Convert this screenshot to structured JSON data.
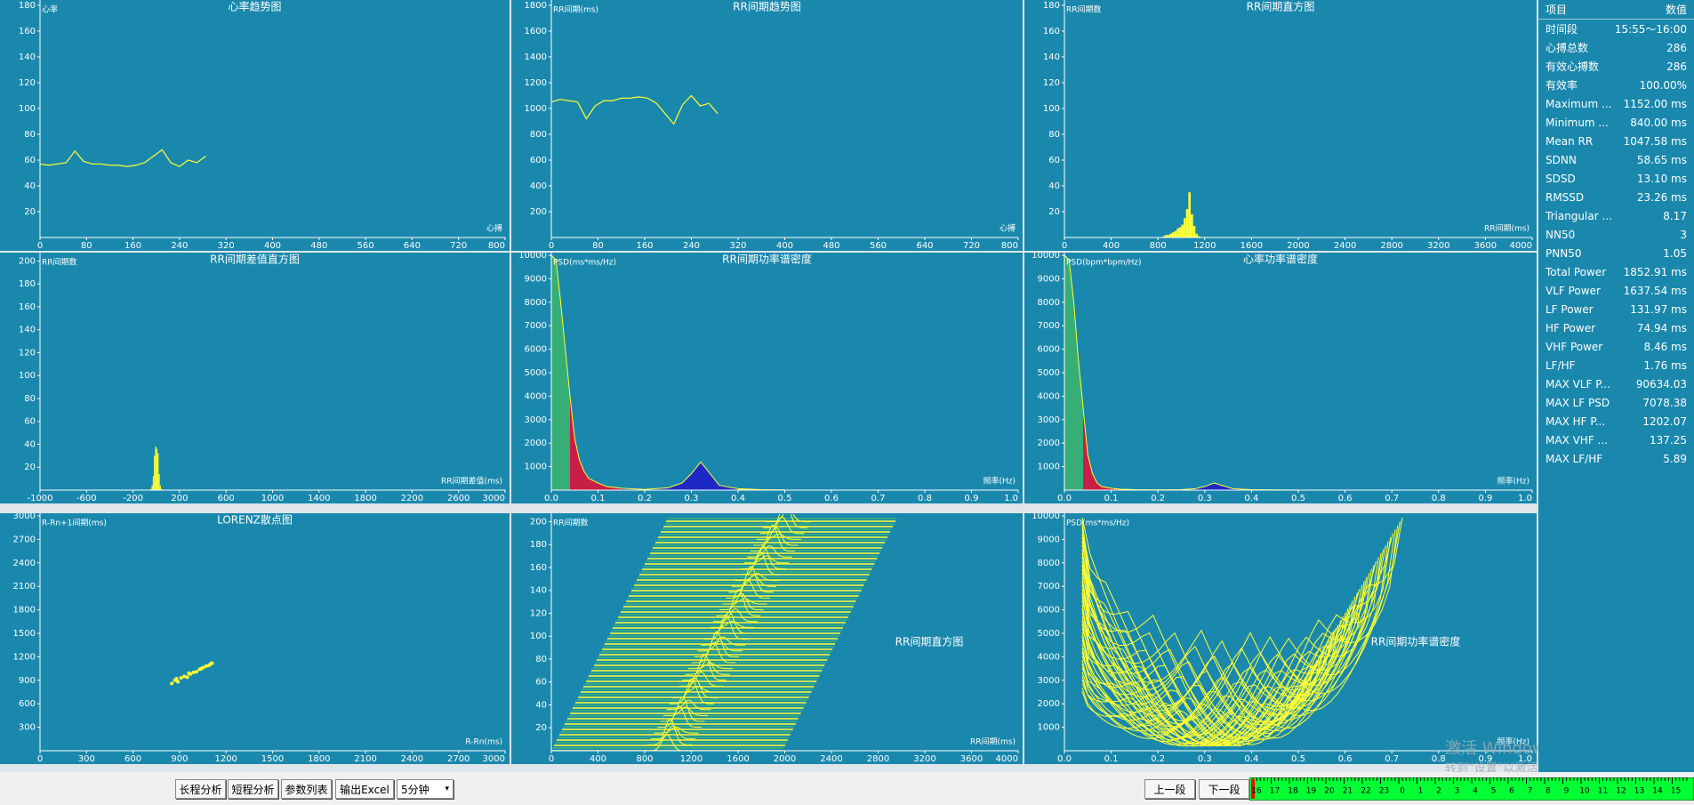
{
  "panels": [
    {
      "type": "line",
      "title": "心率趋势图",
      "y_label": "心率",
      "x_label": "心搏",
      "color": "#ffff33",
      "xlim": [
        0,
        800
      ],
      "xticks": [
        0,
        80,
        160,
        240,
        320,
        400,
        480,
        560,
        640,
        720,
        800
      ],
      "ylim": [
        0,
        182
      ],
      "yticks": [
        20,
        40,
        60,
        80,
        100,
        120,
        140,
        160,
        180
      ],
      "x": [
        0,
        15,
        30,
        45,
        60,
        75,
        90,
        105,
        120,
        135,
        150,
        165,
        180,
        195,
        210,
        225,
        240,
        255,
        270,
        285
      ],
      "values": [
        57,
        56,
        57,
        58,
        67,
        59,
        57,
        57,
        56,
        56,
        55,
        56,
        58,
        63,
        68,
        58,
        55,
        60,
        58,
        63
      ]
    },
    {
      "type": "line",
      "title": "RR间期趋势图",
      "y_label": "RR间期(ms)",
      "x_label": "心搏",
      "color": "#ffff33",
      "xlim": [
        0,
        800
      ],
      "xticks": [
        0,
        80,
        160,
        240,
        320,
        400,
        480,
        560,
        640,
        720,
        800
      ],
      "ylim": [
        0,
        1820
      ],
      "yticks": [
        200,
        400,
        600,
        800,
        1000,
        1200,
        1400,
        1600,
        1800
      ],
      "x": [
        0,
        15,
        30,
        45,
        60,
        75,
        90,
        105,
        120,
        135,
        150,
        165,
        180,
        195,
        210,
        225,
        240,
        255,
        270,
        285
      ],
      "values": [
        1050,
        1070,
        1060,
        1050,
        920,
        1020,
        1060,
        1060,
        1080,
        1080,
        1090,
        1080,
        1040,
        960,
        880,
        1030,
        1100,
        1020,
        1040,
        960
      ]
    },
    {
      "type": "histogram",
      "title": "RR间期直方图",
      "y_label": "RR间期数",
      "x_label": "RR间期(ms)",
      "color": "#ffff33",
      "xlim": [
        0,
        4000
      ],
      "xticks": [
        0,
        400,
        800,
        1200,
        1600,
        2000,
        2400,
        2800,
        3200,
        3600,
        4000
      ],
      "ylim": [
        0,
        182
      ],
      "yticks": [
        20,
        40,
        60,
        80,
        100,
        120,
        140,
        160,
        180
      ],
      "bins": [
        840,
        860,
        880,
        900,
        920,
        940,
        960,
        980,
        1000,
        1020,
        1040,
        1060,
        1080,
        1100,
        1120,
        1140,
        1160
      ],
      "values": [
        1,
        2,
        2,
        3,
        4,
        5,
        7,
        8,
        10,
        15,
        22,
        35,
        18,
        9,
        3,
        1
      ]
    },
    {
      "type": "histogram",
      "title": "RR间期差值直方图",
      "y_label": "RR间期数",
      "x_label": "RR间期差值(ms)",
      "color": "#ffff33",
      "xlim": [
        -1000,
        3000
      ],
      "xticks": [
        -1000,
        -600,
        -200,
        200,
        600,
        1000,
        1400,
        1800,
        2200,
        2600,
        3000
      ],
      "ylim": [
        0,
        205
      ],
      "yticks": [
        20,
        40,
        60,
        80,
        100,
        120,
        140,
        160,
        180,
        200
      ],
      "bins": [
        -50,
        -40,
        -30,
        -20,
        -10,
        0,
        10,
        20,
        30,
        40,
        50
      ],
      "values": [
        1,
        4,
        12,
        30,
        38,
        36,
        32,
        14,
        4,
        1
      ]
    },
    {
      "type": "psd",
      "title": "RR间期功率谱密度",
      "y_label": "PSD(ms*ms/Hz)",
      "x_label": "频率(Hz)",
      "color": "#ffff33",
      "xlim": [
        0,
        1
      ],
      "xticks": [
        {
          "value": 0,
          "label": "0.0"
        },
        0.1,
        0.2,
        0.3,
        0.4,
        0.5,
        0.6,
        0.7,
        0.8,
        0.9,
        {
          "value": 1,
          "label": "1.0"
        }
      ],
      "ylim": [
        0,
        10000
      ],
      "yticks": [
        1000,
        2000,
        3000,
        4000,
        5000,
        6000,
        7000,
        8000,
        9000,
        10000
      ],
      "x": [
        0,
        0.01,
        0.02,
        0.03,
        0.04,
        0.05,
        0.06,
        0.07,
        0.08,
        0.1,
        0.12,
        0.15,
        0.2,
        0.25,
        0.28,
        0.3,
        0.32,
        0.34,
        0.36,
        0.4,
        0.45,
        0.5
      ],
      "values": [
        10000,
        9800,
        8000,
        6000,
        4000,
        2200,
        1300,
        800,
        500,
        300,
        150,
        80,
        30,
        100,
        300,
        700,
        1200,
        700,
        200,
        60,
        20,
        10
      ],
      "bands": [
        {
          "range": [
            0,
            0.04
          ],
          "color": "#3cb371"
        },
        {
          "range": [
            0.04,
            0.15
          ],
          "color": "#dc143c"
        },
        {
          "range": [
            0.15,
            0.4
          ],
          "color": "#1f1fc8"
        },
        {
          "range": [
            0.4,
            0.5
          ],
          "color": "#ffff33"
        }
      ]
    },
    {
      "type": "psd",
      "title": "心率功率谱密度",
      "y_label": "PSD(bpm*bpm/Hz)",
      "x_label": "频率(Hz)",
      "color": "#ffff33",
      "xlim": [
        0,
        1
      ],
      "xticks": [
        {
          "value": 0,
          "label": "0.0"
        },
        0.1,
        0.2,
        0.3,
        0.4,
        0.5,
        0.6,
        0.7,
        0.8,
        0.9,
        {
          "value": 1,
          "label": "1.0"
        }
      ],
      "ylim": [
        0,
        10000
      ],
      "yticks": [
        1000,
        2000,
        3000,
        4000,
        5000,
        6000,
        7000,
        8000,
        9000,
        10000
      ],
      "x": [
        0,
        0.01,
        0.02,
        0.03,
        0.04,
        0.05,
        0.06,
        0.07,
        0.08,
        0.1,
        0.12,
        0.15,
        0.2,
        0.25,
        0.28,
        0.3,
        0.32,
        0.34,
        0.36,
        0.4,
        0.45,
        0.5
      ],
      "values": [
        10000,
        9800,
        8000,
        5500,
        3500,
        1500,
        700,
        300,
        150,
        80,
        40,
        20,
        10,
        20,
        60,
        150,
        300,
        180,
        60,
        20,
        8,
        4
      ],
      "bands": [
        {
          "range": [
            0,
            0.04
          ],
          "color": "#3cb371"
        },
        {
          "range": [
            0.04,
            0.15
          ],
          "color": "#dc143c"
        },
        {
          "range": [
            0.15,
            0.4
          ],
          "color": "#1f1fc8"
        },
        {
          "range": [
            0.4,
            0.5
          ],
          "color": "#ffff33"
        }
      ]
    },
    {
      "type": "scatter",
      "title": "LORENZ散点图",
      "y_label": "R-Rn+1间期(ms)",
      "x_label": "R-Rn(ms)",
      "color": "#ffff33",
      "xlim": [
        0,
        3000
      ],
      "xticks": [
        0,
        300,
        600,
        900,
        1200,
        1500,
        1800,
        2100,
        2400,
        2700,
        3000
      ],
      "ylim": [
        0,
        3000
      ],
      "yticks": [
        300,
        600,
        900,
        1200,
        1500,
        1800,
        2100,
        2400,
        2700,
        3000
      ],
      "x": [
        850,
        870,
        890,
        910,
        930,
        950,
        970,
        990,
        1010,
        1030,
        1050,
        1070,
        1090,
        1100,
        1110,
        880,
        960,
        1040
      ],
      "values": [
        860,
        900,
        880,
        930,
        950,
        940,
        980,
        1000,
        1010,
        1040,
        1060,
        1080,
        1090,
        1110,
        1120,
        920,
        990,
        1050
      ]
    },
    {
      "type": "waterfall",
      "title": "RR间期直方图",
      "y_label": "RR间期数",
      "x_label": "RR间期(ms)",
      "xlim": [
        0,
        4000
      ],
      "xticks": [
        0,
        400,
        800,
        1200,
        1600,
        2000,
        2400,
        2800,
        3200,
        3600,
        4000
      ],
      "ylim": [
        0,
        205
      ],
      "yticks": [
        20,
        40,
        60,
        80,
        100,
        120,
        140,
        160,
        180,
        200
      ]
    },
    {
      "type": "waterfall-psd",
      "title": "RR间期功率谱密度",
      "y_label": "PSD(ms*ms/Hz)",
      "x_label": "频率(Hz)",
      "xlim": [
        0,
        1
      ],
      "xticks": [
        {
          "value": 0,
          "label": "0.0"
        },
        0.1,
        0.2,
        0.3,
        0.4,
        0.5,
        0.6,
        0.7,
        0.8,
        0.9,
        {
          "value": 1,
          "label": "1.0"
        }
      ],
      "ylim": [
        0,
        10000
      ],
      "yticks": [
        1000,
        2000,
        3000,
        4000,
        5000,
        6000,
        7000,
        8000,
        9000,
        10000
      ]
    }
  ],
  "table": {
    "header": [
      "项目",
      "数值"
    ],
    "rows": [
      [
        "时间段",
        "15:55～16:00"
      ],
      [
        "心搏总数",
        "286"
      ],
      [
        "有效心搏数",
        "286"
      ],
      [
        "有效率",
        "100.00%"
      ],
      [
        "Maximum ...",
        "1152.00 ms"
      ],
      [
        "Minimum ...",
        "840.00 ms"
      ],
      [
        "Mean RR",
        "1047.58 ms"
      ],
      [
        "SDNN",
        "58.65 ms"
      ],
      [
        "SDSD",
        "13.10 ms"
      ],
      [
        "RMSSD",
        "23.26 ms"
      ],
      [
        "Triangular ...",
        "8.17"
      ],
      [
        "NN50",
        "3"
      ],
      [
        "PNN50",
        "1.05"
      ],
      [
        "Total Power",
        "1852.91 ms"
      ],
      [
        "VLF Power",
        "1637.54 ms"
      ],
      [
        "LF Power",
        "131.97 ms"
      ],
      [
        "HF Power",
        "74.94 ms"
      ],
      [
        "VHF Power",
        "8.46 ms"
      ],
      [
        "LF/HF",
        "1.76 ms"
      ],
      [
        "MAX VLF P...",
        "90634.03"
      ],
      [
        "MAX LF PSD",
        "7078.38"
      ],
      [
        "MAX HF P...",
        "1202.07"
      ],
      [
        "MAX VHF ...",
        "137.25"
      ],
      [
        "MAX LF/HF",
        "5.89"
      ]
    ]
  },
  "toolbar": {
    "buttons": [
      "长程分析",
      "短程分析",
      "参数列表",
      "输出Excel"
    ],
    "select": "5分钟",
    "nav": [
      "上一段",
      "下一段"
    ],
    "timeline": [
      "16",
      "17",
      "18",
      "19",
      "20",
      "21",
      "22",
      "23",
      "0",
      "1",
      "2",
      "3",
      "4",
      "5",
      "6",
      "7",
      "8",
      "9",
      "10",
      "11",
      "12",
      "13",
      "14",
      "15"
    ]
  },
  "watermark": [
    "激活 Windows",
    "转到“设置”以激活 Windows。"
  ]
}
